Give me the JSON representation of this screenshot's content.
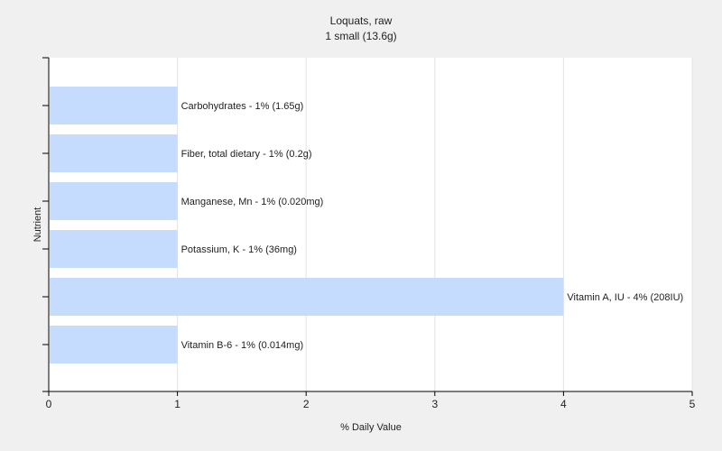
{
  "chart_data": {
    "type": "bar",
    "orientation": "horizontal",
    "title": "Loquats, raw",
    "subtitle": "1 small (13.6g)",
    "xlabel": "% Daily Value",
    "ylabel": "Nutrient",
    "xlim": [
      0,
      5
    ],
    "xticks": [
      0,
      1,
      2,
      3,
      4,
      5
    ],
    "grid": true,
    "bar_color": "#c6dcff",
    "categories": [
      "Carbohydrates",
      "Fiber, total dietary",
      "Manganese, Mn",
      "Potassium, K",
      "Vitamin A, IU",
      "Vitamin B-6"
    ],
    "values": [
      1,
      1,
      1,
      1,
      4,
      1
    ],
    "bar_labels": [
      "Carbohydrates - 1% (1.65g)",
      "Fiber, total dietary - 1% (0.2g)",
      "Manganese, Mn - 1% (0.020mg)",
      "Potassium, K - 1% (36mg)",
      "Vitamin A, IU - 4% (208IU)",
      "Vitamin B-6 - 1% (0.014mg)"
    ]
  }
}
